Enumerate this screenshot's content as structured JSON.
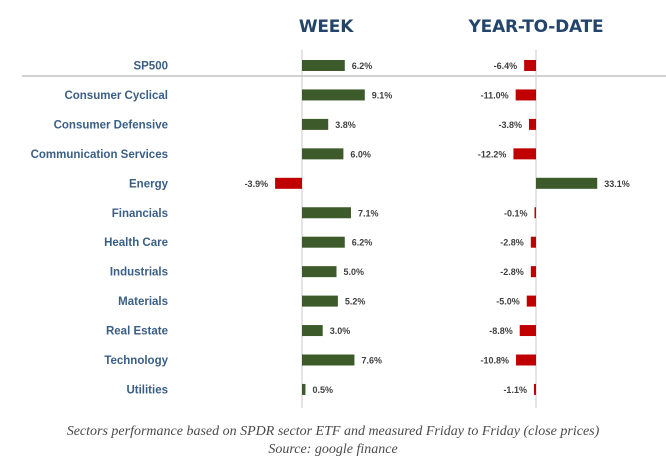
{
  "chart_data": {
    "type": "bar",
    "orientation": "horizontal",
    "panels": [
      "WEEK",
      "YEAR-TO-DATE"
    ],
    "categories": [
      "SP500",
      "Consumer Cyclical",
      "Consumer Defensive",
      "Communication Services",
      "Energy",
      "Financials",
      "Health Care",
      "Industrials",
      "Materials",
      "Real Estate",
      "Technology",
      "Utilities"
    ],
    "series": [
      {
        "name": "WEEK",
        "values": [
          6.2,
          9.1,
          3.8,
          6.0,
          -3.9,
          7.1,
          6.2,
          5.0,
          5.2,
          3.0,
          7.6,
          0.5
        ],
        "labels": [
          "6.2%",
          "9.1%",
          "3.8%",
          "6.0%",
          "-3.9%",
          "7.1%",
          "6.2%",
          "5.0%",
          "5.2%",
          "3.0%",
          "7.6%",
          "0.5%"
        ]
      },
      {
        "name": "YEAR-TO-DATE",
        "values": [
          -6.4,
          -11.0,
          -3.8,
          -12.2,
          33.1,
          -0.1,
          -2.8,
          -2.8,
          -5.0,
          -8.8,
          -10.8,
          -1.1
        ],
        "labels": [
          "-6.4%",
          "-11.0%",
          "-3.8%",
          "-12.2%",
          "33.1%",
          "-0.1%",
          "-2.8%",
          "-2.8%",
          "-5.0%",
          "-8.8%",
          "-10.8%",
          "-1.1%"
        ]
      }
    ],
    "colors": {
      "positive": "#3d5a2a",
      "negative": "#c00000"
    },
    "caption": [
      "Sectors performance based on SPDR sector ETF and measured Friday to Friday (close prices)",
      "Source: google finance"
    ]
  }
}
